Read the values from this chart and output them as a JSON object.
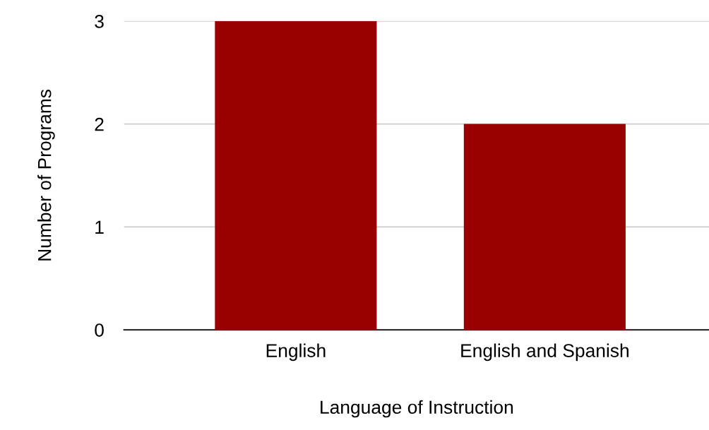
{
  "chart_data": {
    "type": "bar",
    "xlabel": "Language of Instruction",
    "ylabel": "Number of Programs",
    "categories": [
      "English",
      "English and Spanish"
    ],
    "values": [
      3,
      2
    ],
    "color": "#990000",
    "ylim": [
      0,
      3
    ],
    "yticks": [
      0,
      1,
      2,
      3
    ],
    "grid": "y",
    "legend": false
  }
}
